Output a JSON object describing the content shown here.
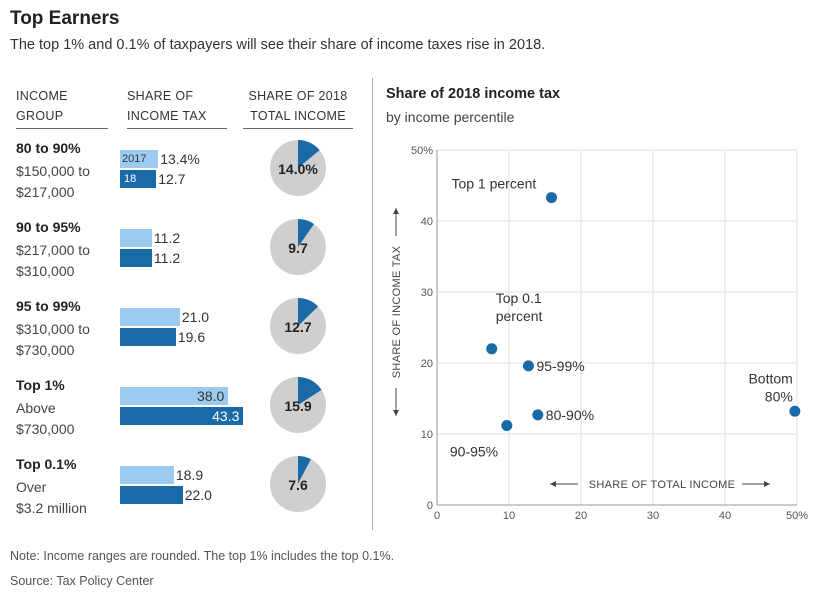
{
  "header": {
    "title": "Top Earners",
    "subtitle": "The top 1% and 0.1% of taxpayers will see their share of income taxes rise in 2018."
  },
  "table": {
    "col_income_group": [
      "INCOME",
      "GROUP"
    ],
    "col_share_tax": [
      "SHARE OF",
      "INCOME TAX"
    ],
    "col_share_income": [
      "SHARE OF 2018",
      "TOTAL INCOME"
    ],
    "legend_2017": "2017",
    "legend_2018": "18",
    "rows": [
      {
        "name": "80 to 90%",
        "desc": [
          "$150,000 to",
          "$217,000"
        ],
        "tax_2017": "13.4%",
        "tax_2018": "12.7",
        "income_2018": "14.0%"
      },
      {
        "name": "90 to 95%",
        "desc": [
          "$217,000 to",
          "$310,000"
        ],
        "tax_2017": "11.2",
        "tax_2018": "11.2",
        "income_2018": "9.7"
      },
      {
        "name": "95 to 99%",
        "desc": [
          "$310,000 to",
          "$730,000"
        ],
        "tax_2017": "21.0",
        "tax_2018": "19.6",
        "income_2018": "12.7"
      },
      {
        "name": "Top 1%",
        "desc": [
          "Above",
          "$730,000"
        ],
        "tax_2017": "38.0",
        "tax_2018": "43.3",
        "income_2018": "15.9"
      },
      {
        "name": "Top 0.1%",
        "desc": [
          "Over",
          "$3.2 million"
        ],
        "tax_2017": "18.9",
        "tax_2018": "22.0",
        "income_2018": "7.6"
      }
    ]
  },
  "scatter": {
    "title": "Share of 2018 income tax",
    "subtitle": "by income percentile",
    "xlabel": "SHARE OF TOTAL INCOME",
    "ylabel": "SHARE OF INCOME TAX",
    "x_ticks": [
      "0",
      "10",
      "20",
      "30",
      "40",
      "50%"
    ],
    "y_ticks": [
      "0",
      "10",
      "20",
      "30",
      "40",
      "50%"
    ]
  },
  "footer": {
    "note": "Note: Income ranges are rounded. The top 1% includes the top 0.1%.",
    "source": "Source: Tax Policy Center"
  },
  "colors": {
    "bar_2017": "#9dcbef",
    "bar_2018": "#1a6aa8",
    "point": "#1a6aa8",
    "pie_bg": "#cfcfcf",
    "pie_slice": "#1a6aa8"
  },
  "chart_data": [
    {
      "type": "bar",
      "title": "",
      "xlabel": "",
      "ylabel": "SHARE OF INCOME TAX",
      "categories": [
        "80 to 90%",
        "90 to 95%",
        "95 to 99%",
        "Top 1%",
        "Top 0.1%"
      ],
      "series": [
        {
          "name": "2017",
          "values": [
            13.4,
            11.2,
            21.0,
            38.0,
            18.9
          ]
        },
        {
          "name": "18",
          "values": [
            12.7,
            11.2,
            19.6,
            43.3,
            22.0
          ]
        }
      ],
      "ylim": [
        0,
        45
      ]
    },
    {
      "type": "pie",
      "title": "",
      "categories": [
        "80 to 90%",
        "90 to 95%",
        "95 to 99%",
        "Top 1%",
        "Top 0.1%"
      ],
      "values": [
        14.0,
        9.7,
        12.7,
        15.9,
        7.6
      ]
    },
    {
      "type": "scatter",
      "title": "Share of 2018 income tax",
      "subtitle": "by income percentile",
      "xlabel": "SHARE OF TOTAL INCOME",
      "ylabel": "SHARE OF INCOME TAX",
      "xlim": [
        0,
        50
      ],
      "ylim": [
        0,
        50
      ],
      "grid": true,
      "points": [
        {
          "label": "Top 1 percent",
          "x": 15.9,
          "y": 43.3
        },
        {
          "label": "Top 0.1 percent",
          "x": 7.6,
          "y": 22.0
        },
        {
          "label": "95-99%",
          "x": 12.7,
          "y": 19.6
        },
        {
          "label": "80-90%",
          "x": 14.0,
          "y": 12.7
        },
        {
          "label": "90-95%",
          "x": 9.7,
          "y": 11.2
        },
        {
          "label": "Bottom 80%",
          "x": 49.7,
          "y": 13.2
        }
      ]
    }
  ]
}
